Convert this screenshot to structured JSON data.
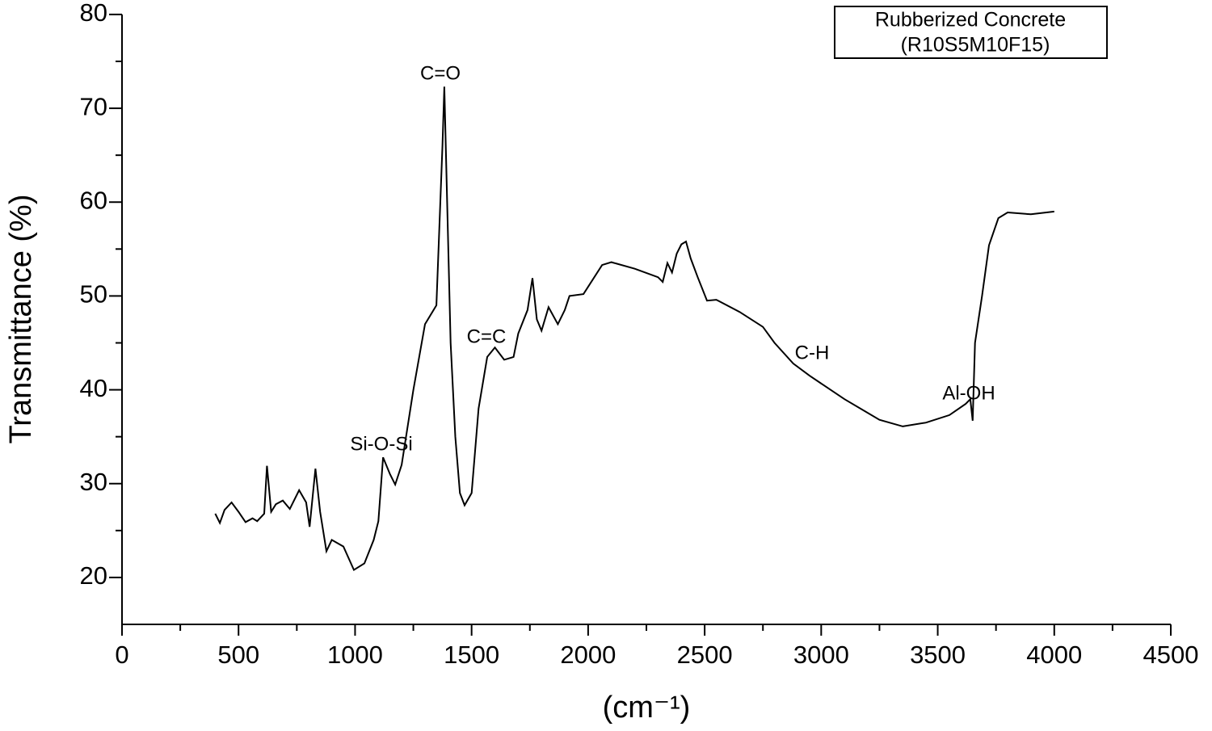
{
  "chart_data": {
    "type": "line",
    "legend_lines": [
      "Rubberized Concrete",
      "(R10S5M10F15)"
    ],
    "x_label": "(cm⁻¹)",
    "y_label": "Transmittance (%)",
    "annotations": [
      "C=O",
      "C=C",
      "Si-O-Si",
      "C-H",
      "Al-OH"
    ],
    "xlim": [
      0,
      4500
    ],
    "xticks": [
      0,
      500,
      1000,
      1500,
      2000,
      2500,
      3000,
      3500,
      4000,
      4500
    ],
    "ylim": [
      15,
      80
    ],
    "yticks": [
      20,
      30,
      40,
      50,
      60,
      70,
      80
    ],
    "series": [
      {
        "color": "#000000",
        "x": [
          400,
          420,
          440,
          470,
          500,
          530,
          560,
          580,
          610,
          622,
          640,
          660,
          690,
          720,
          760,
          790,
          805,
          830,
          850,
          877,
          900,
          950,
          995,
          1040,
          1080,
          1100,
          1120,
          1150,
          1172,
          1200,
          1250,
          1300,
          1349,
          1375,
          1383,
          1395,
          1410,
          1430,
          1450,
          1470,
          1500,
          1530,
          1567,
          1600,
          1640,
          1680,
          1700,
          1740,
          1761,
          1780,
          1800,
          1830,
          1870,
          1900,
          1920,
          1980,
          2060,
          2100,
          2200,
          2300,
          2320,
          2340,
          2360,
          2380,
          2400,
          2420,
          2440,
          2470,
          2510,
          2550,
          2650,
          2750,
          2800,
          2880,
          2950,
          3100,
          3250,
          3350,
          3450,
          3550,
          3620,
          3640,
          3650,
          3660,
          3690,
          3720,
          3760,
          3800,
          3900,
          4000
        ],
        "values": [
          26.8,
          25.8,
          27.2,
          28.0,
          27.0,
          25.9,
          26.3,
          26.0,
          26.8,
          31.9,
          27.0,
          27.8,
          28.2,
          27.3,
          29.3,
          28.0,
          25.4,
          31.6,
          27.0,
          22.8,
          24.0,
          23.3,
          20.8,
          21.5,
          24.0,
          26.0,
          32.8,
          31.0,
          29.9,
          32.0,
          40.0,
          47.0,
          49.0,
          66.0,
          72.3,
          60.0,
          45.0,
          35.0,
          29.0,
          27.7,
          29.0,
          38.0,
          43.5,
          44.5,
          43.2,
          43.5,
          46.0,
          48.5,
          51.9,
          47.5,
          46.3,
          48.8,
          47.0,
          48.5,
          50.0,
          50.2,
          53.3,
          53.6,
          52.9,
          52.0,
          51.5,
          53.5,
          52.5,
          54.5,
          55.5,
          55.8,
          54.0,
          52.0,
          49.5,
          49.6,
          48.3,
          46.7,
          45.0,
          42.8,
          41.5,
          39.0,
          36.8,
          36.1,
          36.5,
          37.3,
          38.5,
          39.0,
          36.7,
          45.0,
          50.0,
          55.4,
          58.3,
          58.9,
          58.7,
          59.0
        ]
      }
    ]
  }
}
